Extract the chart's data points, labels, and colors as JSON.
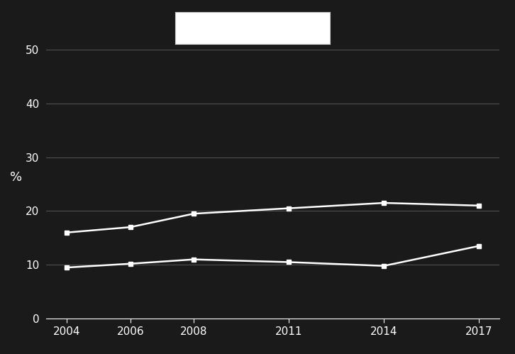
{
  "x_values": [
    2004,
    2006,
    2008,
    2011,
    2014,
    2017
  ],
  "series1_values": [
    16.0,
    17.0,
    19.5,
    20.5,
    21.5,
    21.0
  ],
  "series2_values": [
    9.5,
    10.2,
    11.0,
    10.5,
    9.8,
    13.5
  ],
  "background_color": "#1a1a1a",
  "line_color": "#ffffff",
  "marker_style": "s",
  "marker_size": 5,
  "ylabel": "%",
  "ylim": [
    0,
    50
  ],
  "yticks": [
    0,
    10,
    20,
    30,
    40,
    50
  ],
  "xtick_labels": [
    "2004",
    "2006",
    "2008",
    "2011",
    "2014",
    "2017"
  ],
  "grid_color": "#555555",
  "legend_box_color": "#ffffff"
}
